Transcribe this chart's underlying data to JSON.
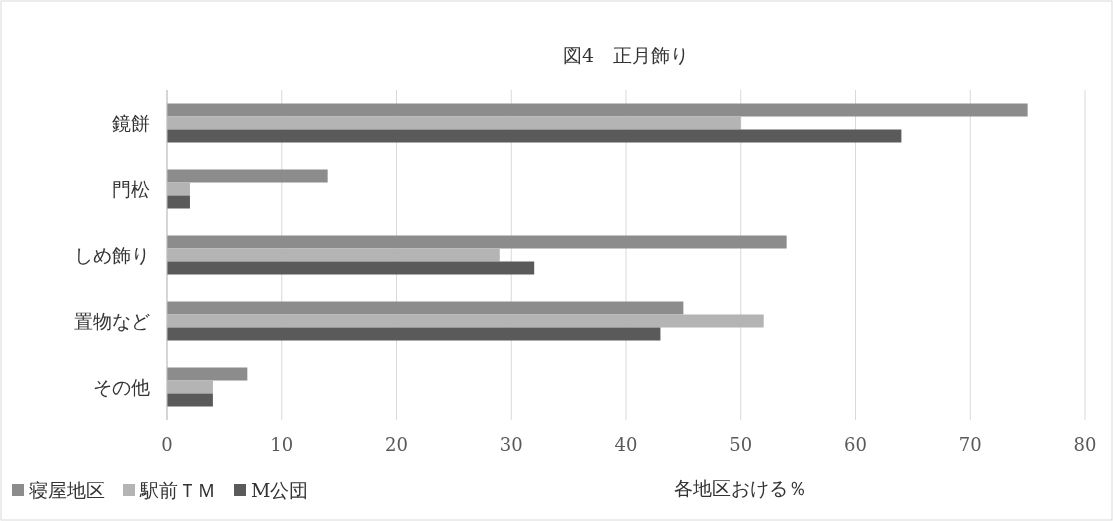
{
  "chart_data": {
    "type": "bar",
    "orientation": "horizontal",
    "title": "図4　正月飾り",
    "xlabel": "各地区おける％",
    "categories": [
      "鏡餅",
      "門松",
      "しめ飾り",
      "置物など",
      "その他"
    ],
    "series": [
      {
        "name": "寝屋地区",
        "color": "#8c8c8c",
        "values": [
          75,
          14,
          54,
          45,
          7
        ]
      },
      {
        "name": "駅前ＴＭ",
        "color": "#b4b4b4",
        "values": [
          50,
          2,
          29,
          52,
          4
        ]
      },
      {
        "name": "M公団",
        "color": "#5a5a5a",
        "values": [
          64,
          2,
          32,
          43,
          4
        ]
      }
    ],
    "xlim": [
      0,
      80
    ],
    "xticks": [
      0,
      10,
      20,
      30,
      40,
      50,
      60,
      70,
      80
    ],
    "grid": "x",
    "legend": "bottom"
  }
}
